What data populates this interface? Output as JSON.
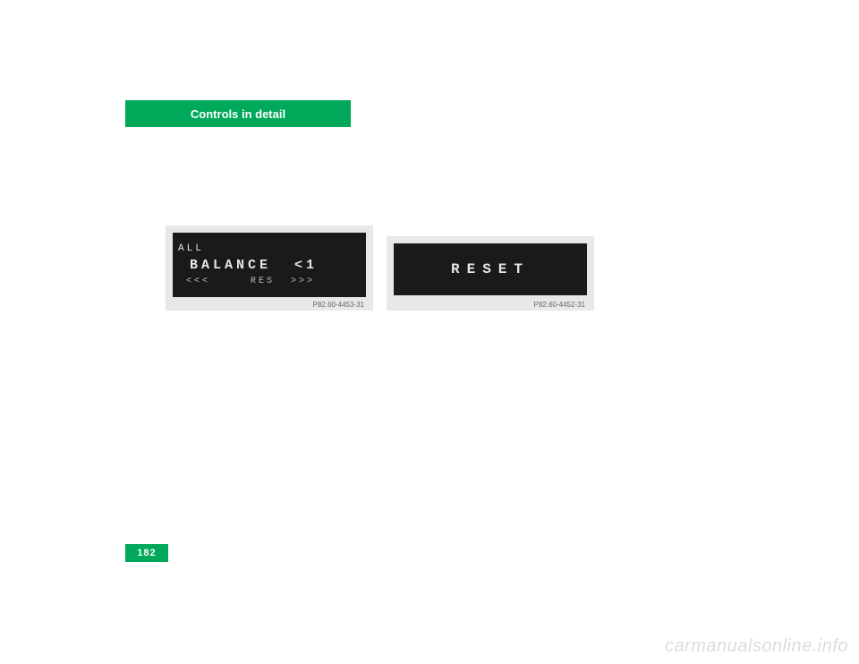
{
  "header": {
    "tab_label": "Controls in detail",
    "tab_bg": "#00a859",
    "tab_fg": "#ffffff"
  },
  "panels": {
    "left": {
      "bg_outer": "#e8e8e6",
      "bg_inner": "#1a1a1a",
      "fg": "#e6e6e6",
      "line1": "ALL",
      "line2": " BALANCE  <1",
      "line3": " <<<     RES  >>>",
      "caption": "P82.60-4453-31"
    },
    "right": {
      "bg_outer": "#e8e8e6",
      "bg_inner": "#1a1a1a",
      "fg": "#e6e6e6",
      "line1": "RESET",
      "caption": "P82.60-4452-31"
    }
  },
  "page_number": "182",
  "watermark": "carmanualsonline.info",
  "colors": {
    "page_bg": "#ffffff",
    "accent": "#00a859",
    "watermark_fg": "#dddddd"
  }
}
